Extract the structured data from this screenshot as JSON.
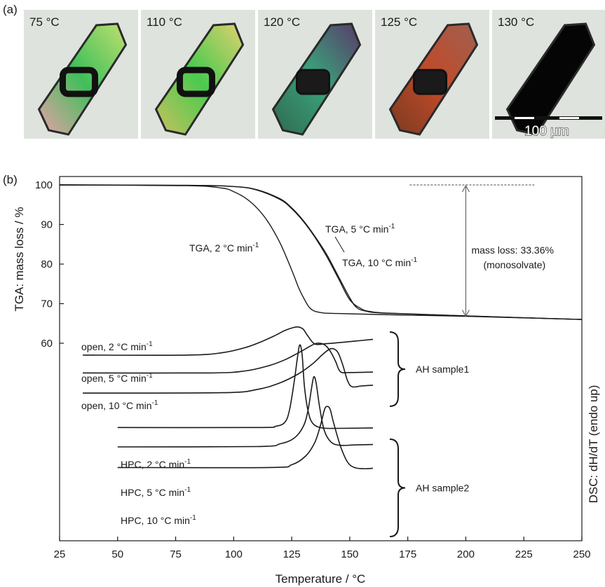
{
  "panel_a": {
    "label": "(a)",
    "temperatures": [
      "75 °C",
      "110 °C",
      "120 °C",
      "125 °C",
      "130 °C"
    ],
    "crystal_colors": [
      [
        "#e8a0a8",
        "#3fbf5a",
        "#c0e070"
      ],
      [
        "#c8c060",
        "#4acb4e",
        "#e0d070"
      ],
      [
        "#2f6a50",
        "#3aa07a",
        "#5a3a6a"
      ],
      [
        "#7a3a20",
        "#c04a2a",
        "#a06050"
      ],
      [
        "#050505",
        "#050505",
        "#050505"
      ]
    ],
    "scale_bar": "100 μm",
    "background_color": "#dfe3de"
  },
  "panel_b": {
    "label": "(b)"
  },
  "chart_data": {
    "type": "line",
    "xlabel": "Temperature / °C",
    "ylabel_left": "TGA: mass loss / %",
    "ylabel_right": "DSC: dH/dT (endo up)",
    "xlim": [
      25,
      250
    ],
    "x_ticks": [
      25,
      50,
      75,
      100,
      125,
      150,
      175,
      200,
      225,
      250
    ],
    "ylim": [
      56,
      102
    ],
    "y_ticks": [
      60,
      70,
      80,
      90,
      100
    ],
    "grid": false,
    "tga_series": [
      {
        "name": "TGA, 2 °C min-1",
        "rate": "2",
        "x": [
          25,
          80,
          95,
          100,
          105,
          110,
          115,
          120,
          125,
          128,
          130,
          133,
          137,
          145,
          175,
          200,
          250
        ],
        "y": [
          100,
          99.8,
          99.2,
          98.3,
          96.7,
          94.2,
          90.5,
          85.3,
          78.5,
          74.0,
          71.6,
          68.8,
          67.8,
          67.5,
          67.1,
          66.8,
          66.0
        ]
      },
      {
        "name": "TGA, 5 °C min-1",
        "rate": "5",
        "x": [
          25,
          80,
          100,
          110,
          120,
          125,
          130,
          135,
          140,
          145,
          150,
          153,
          157,
          165,
          200,
          250
        ],
        "y": [
          100,
          99.9,
          99.6,
          98.8,
          96.5,
          94.2,
          91.0,
          87.0,
          82.5,
          77.0,
          71.5,
          69.0,
          68.1,
          67.6,
          66.9,
          66.0
        ]
      },
      {
        "name": "TGA, 10 °C min-1",
        "rate": "10",
        "x": [
          25,
          80,
          100,
          110,
          120,
          125,
          130,
          135,
          140,
          145,
          150,
          155,
          159,
          167,
          200,
          250
        ],
        "y": [
          100,
          99.9,
          99.6,
          98.7,
          96.3,
          94.0,
          90.8,
          86.8,
          82.0,
          76.5,
          71.0,
          68.7,
          68.0,
          67.6,
          66.9,
          66.0
        ]
      }
    ],
    "dsc_groups": [
      {
        "label": "AH sample1",
        "series": [
          {
            "name": "open, 2 °C min-1",
            "rate": "2",
            "x": [
              35,
              80,
              95,
              105,
              112,
              118,
              122,
              126,
              128,
              130,
              132,
              135,
              140,
              150,
              160
            ],
            "y": [
              57.0,
              57.0,
              57.6,
              58.9,
              60.4,
              62.0,
              63.2,
              64.0,
              64.1,
              63.5,
              61.8,
              59.8,
              59.9,
              60.4,
              61.0
            ]
          },
          {
            "name": "open, 5 °C min-1",
            "rate": "5",
            "x": [
              35,
              90,
              105,
              115,
              122,
              127,
              131,
              134,
              136,
              138,
              140,
              142,
              144,
              146,
              150,
              160
            ],
            "y": [
              52.5,
              52.5,
              53.0,
              54.3,
              55.8,
              57.3,
              58.6,
              59.6,
              60.0,
              59.9,
              59.2,
              57.6,
              55.3,
              52.8,
              52.6,
              52.7
            ]
          },
          {
            "name": "open, 10 °C min-1",
            "rate": "10",
            "x": [
              35,
              95,
              110,
              120,
              128,
              134,
              138,
              141,
              143,
              145,
              147,
              149,
              151,
              155,
              160
            ],
            "y": [
              47.4,
              47.5,
              48.3,
              50.0,
              52.3,
              54.8,
              57.0,
              58.4,
              58.6,
              57.6,
              54.5,
              50.6,
              49.0,
              49.2,
              49.4
            ]
          }
        ]
      },
      {
        "label": "AH sample2",
        "series": [
          {
            "name": "HPC, 2 °C min-1",
            "rate": "2",
            "x": [
              50,
              110,
              118,
              122,
              124,
              126,
              127.5,
              128.5,
              129.5,
              130.5,
              132,
              134,
              138,
              145,
              160
            ],
            "y": [
              38.7,
              38.7,
              39.0,
              40.0,
              43.0,
              50.0,
              56.5,
              59.6,
              57.0,
              49.0,
              43.0,
              39.8,
              38.6,
              38.5,
              38.6
            ]
          },
          {
            "name": "HPC, 5 °C min-1",
            "rate": "5",
            "x": [
              50,
              110,
              120,
              126,
              130,
              132,
              133.5,
              134.5,
              135.5,
              137,
              139,
              142,
              146,
              152,
              160
            ],
            "y": [
              33.8,
              33.9,
              34.6,
              36.0,
              39.0,
              43.0,
              48.5,
              51.5,
              50.0,
              44.0,
              38.0,
              35.0,
              34.2,
              34.3,
              34.4
            ]
          },
          {
            "name": "HPC, 10 °C min-1",
            "rate": "10",
            "x": [
              50,
              115,
              125,
              131,
              135,
              137.5,
              139,
              140,
              141.5,
              143,
              146,
              149,
              152,
              156,
              160
            ],
            "y": [
              28.6,
              28.6,
              29.3,
              31.5,
              35.0,
              39.5,
              43.0,
              44.0,
              43.4,
              40.0,
              34.0,
              30.0,
              28.6,
              28.3,
              28.4
            ]
          }
        ]
      }
    ],
    "annotations": {
      "mass_loss": "mass loss: 33.36%",
      "monosolvate": "(monosolvate)",
      "mass_loss_from": 100,
      "mass_loss_to": 66.64,
      "ref_line_x": [
        200,
        225
      ]
    },
    "colors": {
      "curve": "#1a1a1a",
      "arrow": "#666666"
    }
  }
}
